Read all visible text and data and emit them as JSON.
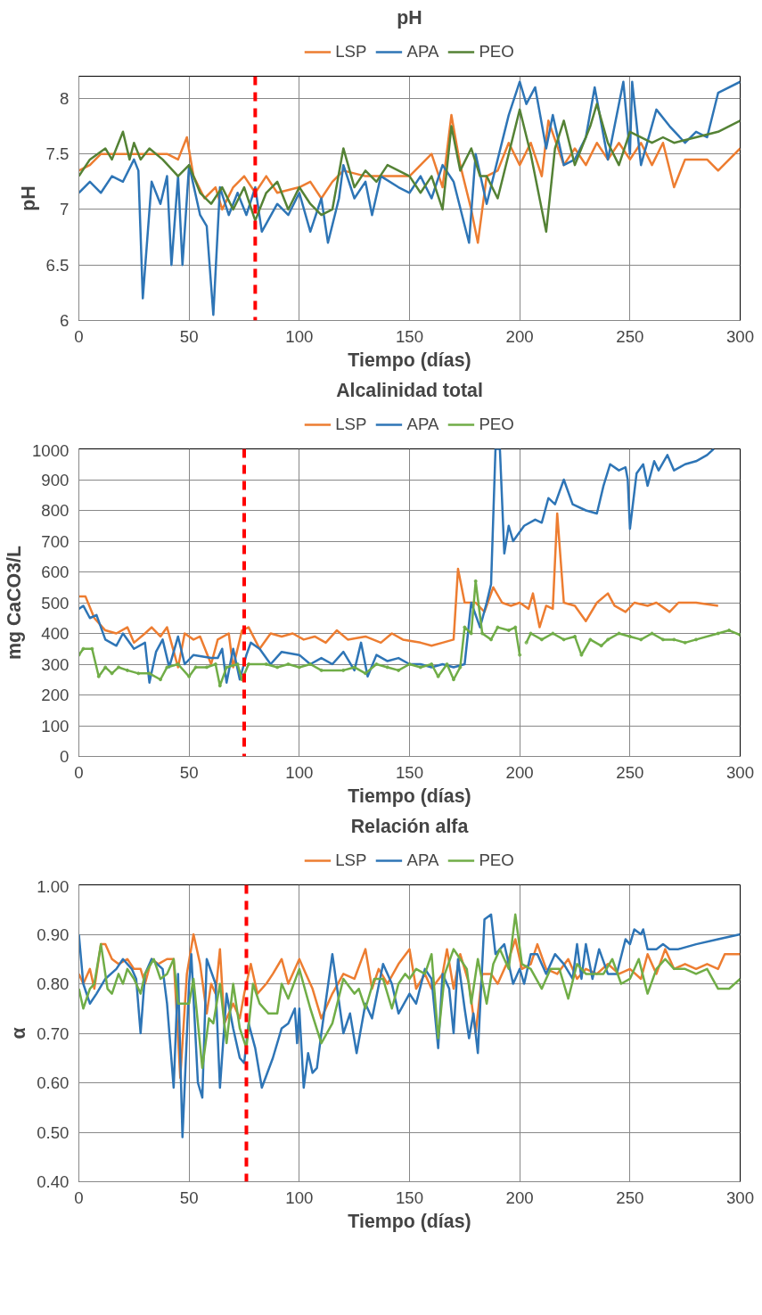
{
  "chart_data": [
    {
      "type": "line",
      "title": "pH",
      "xlabel": "Tiempo (días)",
      "ylabel": "pH",
      "xlim": [
        0,
        300
      ],
      "xticks": [
        0,
        50,
        100,
        150,
        200,
        250,
        300
      ],
      "ylim": [
        6,
        8.2
      ],
      "yticks": [
        6,
        6.5,
        7,
        7.5,
        8
      ],
      "grid": true,
      "legend": "top",
      "line_style": "solid",
      "ref_lines": [
        {
          "axis": "x",
          "value": 80,
          "color": "#ff0000",
          "line_style": "dashed"
        }
      ],
      "series": [
        {
          "name": "LSP",
          "color": "#ed7d31",
          "x": [
            0,
            5,
            10,
            20,
            30,
            40,
            45,
            49,
            52,
            57,
            62,
            65,
            70,
            75,
            80,
            85,
            90,
            100,
            105,
            110,
            115,
            120,
            130,
            140,
            150,
            160,
            165,
            169,
            173,
            178,
            181,
            185,
            190,
            195,
            200,
            205,
            210,
            213,
            220,
            225,
            230,
            235,
            240,
            245,
            250,
            255,
            260,
            265,
            270,
            275,
            285,
            290,
            300
          ],
          "values": [
            7.35,
            7.4,
            7.5,
            7.5,
            7.5,
            7.5,
            7.45,
            7.65,
            7.3,
            7.1,
            7.2,
            7.0,
            7.2,
            7.3,
            7.15,
            7.3,
            7.15,
            7.2,
            7.25,
            7.1,
            7.25,
            7.35,
            7.3,
            7.3,
            7.3,
            7.5,
            7.2,
            7.85,
            7.4,
            7.0,
            6.7,
            7.3,
            7.35,
            7.6,
            7.4,
            7.6,
            7.3,
            7.8,
            7.4,
            7.55,
            7.4,
            7.6,
            7.45,
            7.6,
            7.45,
            7.6,
            7.4,
            7.6,
            7.2,
            7.45,
            7.45,
            7.35,
            7.55
          ]
        },
        {
          "name": "APA",
          "color": "#2e75b6",
          "x": [
            0,
            5,
            10,
            15,
            20,
            25,
            27,
            29,
            33,
            37,
            40,
            42,
            45,
            47,
            50,
            55,
            58,
            61,
            64,
            68,
            72,
            76,
            80,
            83,
            90,
            95,
            100,
            105,
            110,
            113,
            118,
            120,
            125,
            130,
            133,
            137,
            145,
            150,
            155,
            160,
            165,
            170,
            177,
            180,
            185,
            190,
            195,
            200,
            203,
            207,
            212,
            215,
            220,
            225,
            230,
            234,
            240,
            247,
            250,
            251,
            255,
            262,
            268,
            275,
            280,
            285,
            290,
            300
          ],
          "values": [
            7.15,
            7.25,
            7.15,
            7.3,
            7.25,
            7.45,
            7.35,
            6.2,
            7.25,
            7.05,
            7.3,
            6.5,
            7.3,
            6.5,
            7.4,
            6.95,
            6.85,
            6.05,
            7.2,
            6.95,
            7.15,
            6.95,
            7.2,
            6.8,
            7.05,
            6.95,
            7.15,
            6.8,
            7.1,
            6.7,
            7.1,
            7.4,
            7.1,
            7.25,
            6.95,
            7.3,
            7.2,
            7.15,
            7.3,
            7.1,
            7.4,
            7.25,
            6.7,
            7.5,
            7.05,
            7.45,
            7.85,
            8.15,
            7.95,
            8.1,
            7.55,
            7.85,
            7.4,
            7.45,
            7.65,
            8.1,
            7.45,
            8.15,
            7.5,
            8.15,
            7.4,
            7.9,
            7.75,
            7.6,
            7.7,
            7.65,
            8.05,
            8.15
          ]
        },
        {
          "name": "PEO",
          "color": "#548235",
          "x": [
            0,
            5,
            12,
            15,
            20,
            23,
            25,
            28,
            32,
            38,
            45,
            50,
            55,
            60,
            65,
            70,
            75,
            80,
            85,
            90,
            95,
            100,
            105,
            110,
            115,
            120,
            125,
            130,
            135,
            140,
            150,
            155,
            160,
            165,
            169,
            173,
            178,
            182,
            185,
            190,
            195,
            200,
            205,
            212,
            216,
            220,
            225,
            232,
            235,
            240,
            245,
            250,
            260,
            265,
            270,
            280,
            290,
            300
          ],
          "values": [
            7.3,
            7.45,
            7.55,
            7.45,
            7.7,
            7.45,
            7.6,
            7.45,
            7.55,
            7.45,
            7.3,
            7.4,
            7.15,
            7.05,
            7.2,
            7.0,
            7.2,
            6.9,
            7.15,
            7.25,
            7.0,
            7.2,
            7.05,
            6.95,
            7.0,
            7.55,
            7.2,
            7.35,
            7.25,
            7.4,
            7.3,
            7.15,
            7.3,
            7.0,
            7.75,
            7.35,
            7.55,
            7.3,
            7.3,
            7.1,
            7.5,
            7.9,
            7.5,
            6.8,
            7.55,
            7.8,
            7.4,
            7.75,
            7.95,
            7.6,
            7.4,
            7.7,
            7.6,
            7.65,
            7.6,
            7.65,
            7.7,
            7.8
          ]
        }
      ]
    },
    {
      "type": "line",
      "title": "Alcalinidad total",
      "xlabel": "Tiempo (días)",
      "ylabel": "mg CaCO3/L",
      "xlim": [
        0,
        300
      ],
      "xticks": [
        0,
        50,
        100,
        150,
        200,
        250,
        300
      ],
      "ylim": [
        0,
        1000
      ],
      "yticks": [
        0,
        100,
        200,
        300,
        400,
        500,
        600,
        700,
        800,
        900,
        1000
      ],
      "grid": true,
      "legend": "top",
      "line_style": "solid",
      "ref_lines": [
        {
          "axis": "x",
          "value": 75,
          "color": "#ff0000",
          "line_style": "dashed"
        }
      ],
      "series": [
        {
          "name": "LSP",
          "color": "#ed7d31",
          "x": [
            0,
            3,
            7,
            12,
            17,
            22,
            25,
            30,
            33,
            37,
            40,
            45,
            48,
            52,
            55,
            60,
            63,
            68,
            70,
            74,
            77,
            82,
            87,
            92,
            97,
            102,
            107,
            112,
            117,
            122,
            130,
            137,
            142,
            147,
            155,
            160,
            165,
            170,
            172,
            175,
            180,
            184,
            188,
            192,
            196,
            200,
            204,
            206,
            209,
            212,
            215,
            217,
            220,
            225,
            230,
            235,
            240,
            243,
            248,
            252,
            258,
            262,
            268,
            272,
            280,
            290
          ],
          "values": [
            520,
            520,
            450,
            410,
            400,
            420,
            370,
            400,
            420,
            390,
            420,
            290,
            400,
            380,
            390,
            300,
            380,
            400,
            290,
            410,
            420,
            350,
            400,
            390,
            400,
            380,
            390,
            370,
            410,
            380,
            390,
            370,
            400,
            380,
            370,
            360,
            370,
            380,
            610,
            500,
            500,
            470,
            550,
            500,
            490,
            500,
            480,
            530,
            420,
            490,
            480,
            790,
            500,
            490,
            440,
            500,
            530,
            490,
            470,
            500,
            490,
            500,
            470,
            500,
            500,
            490
          ]
        },
        {
          "name": "APA",
          "color": "#2e75b6",
          "x": [
            0,
            2,
            5,
            8,
            12,
            17,
            20,
            25,
            30,
            32,
            35,
            38,
            41,
            45,
            48,
            52,
            60,
            63,
            65,
            67,
            70,
            73,
            76,
            78,
            82,
            87,
            92,
            100,
            105,
            110,
            115,
            120,
            125,
            128,
            131,
            135,
            140,
            145,
            150,
            155,
            160,
            165,
            170,
            175,
            178,
            182,
            185,
            187,
            189,
            191,
            193,
            195,
            197,
            202,
            207,
            210,
            213,
            216,
            220,
            224,
            230,
            235,
            238,
            241,
            245,
            248,
            249,
            250,
            253,
            256,
            258,
            261,
            263,
            267,
            270,
            275,
            280,
            285,
            288
          ],
          "values": [
            480,
            490,
            450,
            460,
            380,
            360,
            400,
            350,
            370,
            240,
            340,
            380,
            290,
            390,
            300,
            330,
            320,
            320,
            350,
            240,
            350,
            250,
            330,
            370,
            350,
            300,
            340,
            330,
            300,
            320,
            300,
            340,
            280,
            370,
            260,
            330,
            310,
            320,
            300,
            300,
            290,
            300,
            290,
            300,
            500,
            420,
            500,
            560,
            1000,
            1000,
            660,
            750,
            700,
            750,
            770,
            760,
            840,
            820,
            900,
            820,
            800,
            790,
            880,
            950,
            930,
            940,
            900,
            740,
            920,
            950,
            880,
            960,
            930,
            980,
            930,
            950,
            960,
            980,
            1000
          ]
        },
        {
          "name": "PEO",
          "color": "#70ad47",
          "marker": "circle",
          "x": [
            0,
            2,
            6,
            9,
            12,
            15,
            18,
            22,
            27,
            32,
            37,
            40,
            45,
            50,
            53,
            58,
            62,
            64,
            67,
            72,
            74,
            77,
            85,
            90,
            95,
            100,
            105,
            110,
            120,
            125,
            130,
            135,
            140,
            145,
            150,
            155,
            160,
            163,
            167,
            170,
            173,
            175,
            178,
            180,
            183,
            187,
            190,
            195,
            198,
            200,
            201,
            203,
            205,
            210,
            215,
            220,
            225,
            228,
            232,
            237,
            240,
            245,
            250,
            255,
            260,
            265,
            270,
            275,
            280,
            290,
            295,
            300
          ],
          "values": [
            330,
            350,
            350,
            260,
            290,
            270,
            290,
            280,
            270,
            270,
            250,
            290,
            300,
            260,
            290,
            290,
            300,
            230,
            290,
            300,
            250,
            300,
            300,
            290,
            300,
            290,
            300,
            280,
            280,
            290,
            270,
            300,
            290,
            280,
            300,
            290,
            300,
            260,
            300,
            250,
            290,
            420,
            400,
            570,
            400,
            380,
            420,
            410,
            420,
            330,
            null,
            370,
            400,
            380,
            400,
            380,
            390,
            330,
            380,
            360,
            380,
            400,
            390,
            380,
            400,
            380,
            380,
            370,
            380,
            400,
            410,
            395
          ]
        }
      ]
    },
    {
      "type": "line",
      "title": "Relación alfa",
      "xlabel": "Tiempo (días)",
      "ylabel": "α",
      "xlim": [
        0,
        300
      ],
      "xticks": [
        0,
        50,
        100,
        150,
        200,
        250,
        300
      ],
      "ylim": [
        0.4,
        1.0
      ],
      "yticks": [
        {
          "value": 0.4,
          "label": "0.40"
        },
        {
          "value": 0.5,
          "label": "0.50"
        },
        {
          "value": 0.6,
          "label": "0.60"
        },
        {
          "value": 0.7,
          "label": "0.70"
        },
        {
          "value": 0.8,
          "label": "0.80"
        },
        {
          "value": 0.9,
          "label": "0.90"
        },
        {
          "value": 1.0,
          "label": "1.00"
        }
      ],
      "grid": true,
      "legend": "top",
      "line_style": "solid",
      "ref_lines": [
        {
          "axis": "x",
          "value": 76,
          "color": "#ff0000",
          "line_style": "dashed"
        }
      ],
      "series": [
        {
          "name": "LSP",
          "color": "#ed7d31",
          "x": [
            0,
            2,
            5,
            7,
            10,
            12,
            15,
            18,
            22,
            25,
            28,
            30,
            33,
            36,
            40,
            43,
            46,
            49,
            52,
            55,
            58,
            60,
            62,
            64,
            66,
            70,
            73,
            75,
            78,
            81,
            85,
            88,
            92,
            95,
            100,
            103,
            106,
            110,
            115,
            120,
            125,
            130,
            133,
            136,
            140,
            145,
            150,
            153,
            157,
            160,
            165,
            167,
            170,
            173,
            177,
            180,
            183,
            187,
            190,
            195,
            198,
            201,
            205,
            208,
            212,
            217,
            222,
            226,
            230,
            235,
            240,
            245,
            250,
            255,
            258,
            262,
            266,
            270,
            275,
            280,
            285,
            290,
            293,
            300
          ],
          "values": [
            0.82,
            0.8,
            0.83,
            0.79,
            0.88,
            0.88,
            0.85,
            0.84,
            0.85,
            0.83,
            0.83,
            0.8,
            0.85,
            0.84,
            0.85,
            0.85,
            0.61,
            0.82,
            0.9,
            0.84,
            0.74,
            0.8,
            0.78,
            0.87,
            0.72,
            0.76,
            0.73,
            0.78,
            0.84,
            0.78,
            0.8,
            0.82,
            0.85,
            0.8,
            0.85,
            0.82,
            0.79,
            0.73,
            0.78,
            0.82,
            0.81,
            0.87,
            0.79,
            0.83,
            0.8,
            0.84,
            0.87,
            0.79,
            0.82,
            0.79,
            0.82,
            0.87,
            0.79,
            0.86,
            0.8,
            0.7,
            0.82,
            0.82,
            0.8,
            0.85,
            0.89,
            0.83,
            0.84,
            0.88,
            0.83,
            0.82,
            0.85,
            0.81,
            0.83,
            0.82,
            0.84,
            0.82,
            0.83,
            0.81,
            0.86,
            0.82,
            0.87,
            0.83,
            0.84,
            0.83,
            0.84,
            0.83,
            0.86,
            0.86
          ]
        },
        {
          "name": "APA",
          "color": "#2e75b6",
          "x": [
            0,
            2,
            5,
            8,
            12,
            17,
            20,
            24,
            26,
            28,
            30,
            33,
            38,
            40,
            43,
            45,
            47,
            50,
            51,
            54,
            56,
            58,
            62,
            64,
            67,
            70,
            73,
            75,
            77,
            80,
            83,
            88,
            92,
            95,
            98,
            99,
            100,
            102,
            104,
            106,
            108,
            110,
            115,
            120,
            123,
            126,
            130,
            133,
            138,
            142,
            145,
            150,
            153,
            157,
            160,
            163,
            165,
            168,
            170,
            172,
            175,
            177,
            179,
            181,
            184,
            187,
            189,
            193,
            197,
            200,
            202,
            205,
            208,
            212,
            216,
            220,
            224,
            226,
            228,
            230,
            233,
            236,
            240,
            244,
            248,
            250,
            252,
            255,
            256,
            258,
            262,
            265,
            268,
            272,
            280,
            290,
            300
          ],
          "values": [
            0.9,
            0.8,
            0.76,
            0.78,
            0.81,
            0.83,
            0.85,
            0.83,
            0.81,
            0.7,
            0.82,
            0.85,
            0.83,
            0.76,
            0.59,
            0.82,
            0.49,
            0.8,
            0.86,
            0.6,
            0.57,
            0.85,
            0.8,
            0.59,
            0.78,
            0.71,
            0.65,
            0.64,
            0.72,
            0.67,
            0.59,
            0.65,
            0.71,
            0.72,
            0.75,
            0.68,
            0.75,
            0.59,
            0.66,
            0.62,
            0.63,
            0.7,
            0.86,
            0.7,
            0.74,
            0.66,
            0.76,
            0.73,
            0.84,
            0.8,
            0.74,
            0.78,
            0.76,
            0.83,
            0.81,
            0.67,
            0.82,
            0.79,
            0.7,
            0.85,
            0.75,
            0.69,
            0.74,
            0.66,
            0.93,
            0.94,
            0.86,
            0.88,
            0.8,
            0.83,
            0.8,
            0.86,
            0.86,
            0.82,
            0.86,
            0.84,
            0.81,
            0.88,
            0.81,
            0.88,
            0.81,
            0.87,
            0.82,
            0.82,
            0.89,
            0.88,
            0.91,
            0.9,
            0.91,
            0.87,
            0.87,
            0.88,
            0.87,
            0.87,
            0.88,
            0.89,
            0.9
          ]
        },
        {
          "name": "PEO",
          "color": "#70ad47",
          "x": [
            0,
            2,
            5,
            7,
            10,
            13,
            15,
            18,
            20,
            22,
            25,
            28,
            30,
            34,
            37,
            40,
            43,
            45,
            50,
            52,
            56,
            59,
            61,
            64,
            67,
            70,
            73,
            76,
            79,
            82,
            86,
            90,
            92,
            95,
            100,
            105,
            110,
            115,
            120,
            125,
            127,
            130,
            134,
            138,
            142,
            145,
            148,
            150,
            153,
            157,
            160,
            163,
            166,
            170,
            173,
            176,
            178,
            181,
            185,
            188,
            191,
            195,
            198,
            201,
            205,
            210,
            214,
            218,
            222,
            226,
            230,
            234,
            238,
            242,
            246,
            250,
            254,
            258,
            262,
            266,
            270,
            275,
            280,
            285,
            290,
            295,
            300
          ],
          "values": [
            0.79,
            0.75,
            0.79,
            0.8,
            0.88,
            0.79,
            0.78,
            0.82,
            0.8,
            0.83,
            0.81,
            0.78,
            0.82,
            0.85,
            0.81,
            0.82,
            0.85,
            0.76,
            0.76,
            0.81,
            0.63,
            0.73,
            0.72,
            0.8,
            0.68,
            0.8,
            0.71,
            0.67,
            0.8,
            0.76,
            0.74,
            0.74,
            0.8,
            0.77,
            0.83,
            0.75,
            0.68,
            0.72,
            0.81,
            0.78,
            0.79,
            0.75,
            0.81,
            0.81,
            0.75,
            0.8,
            0.82,
            0.81,
            0.83,
            0.82,
            0.86,
            0.69,
            0.82,
            0.87,
            0.85,
            0.83,
            0.76,
            0.85,
            0.76,
            0.84,
            0.87,
            0.83,
            0.94,
            0.84,
            0.83,
            0.79,
            0.83,
            0.83,
            0.77,
            0.84,
            0.82,
            0.82,
            0.82,
            0.85,
            0.8,
            0.81,
            0.85,
            0.78,
            0.83,
            0.85,
            0.83,
            0.83,
            0.82,
            0.83,
            0.79,
            0.79,
            0.81
          ]
        }
      ]
    }
  ]
}
